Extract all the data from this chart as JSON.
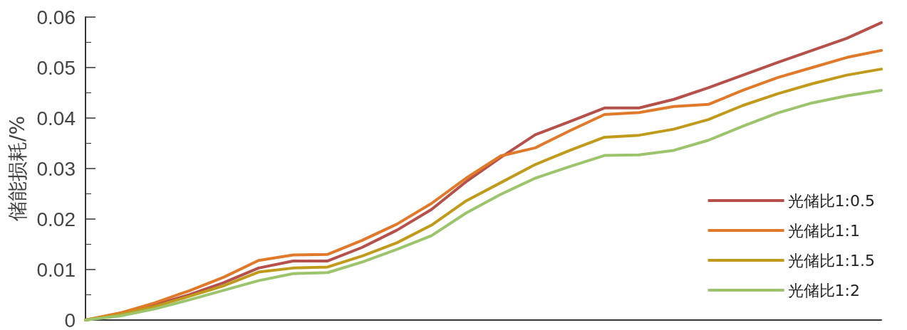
{
  "chart_data": {
    "type": "line",
    "ylabel": "储能损耗/%",
    "categories": [
      null,
      null,
      null,
      null,
      null,
      null,
      null,
      null,
      null,
      null,
      null,
      null,
      null,
      null,
      null,
      null,
      null,
      null,
      null,
      null,
      null,
      null,
      null,
      null
    ],
    "ylim": [
      0,
      0.06
    ],
    "yticks": [
      0,
      0.01,
      0.02,
      0.03,
      0.04,
      0.05,
      0.06
    ],
    "grid": false,
    "legend": "bottom right",
    "marker": "none",
    "line_style": "solid",
    "tick_labels": "y",
    "series": [
      {
        "name": "光储比1:0.5",
        "color": "#b5504a",
        "values": [
          0,
          0.0012,
          0.003,
          0.005,
          0.0074,
          0.0103,
          0.0117,
          0.0117,
          0.0144,
          0.0178,
          0.0219,
          0.0274,
          0.0322,
          0.0367,
          0.0393,
          0.042,
          0.042,
          0.0437,
          0.046,
          0.0485,
          0.051,
          0.0534,
          0.0558,
          0.0589
        ]
      },
      {
        "name": "光储比1:1",
        "color": "#e07a2a",
        "values": [
          0,
          0.0014,
          0.0034,
          0.0058,
          0.0085,
          0.0118,
          0.0129,
          0.013,
          0.0158,
          0.019,
          0.0231,
          0.0281,
          0.0325,
          0.0341,
          0.0375,
          0.0407,
          0.0411,
          0.0423,
          0.0427,
          0.0455,
          0.048,
          0.05,
          0.052,
          0.0534
        ]
      },
      {
        "name": "光储比1:1.5",
        "color": "#c09a1a",
        "values": [
          0,
          0.0011,
          0.0027,
          0.0047,
          0.0068,
          0.0095,
          0.0103,
          0.0105,
          0.0127,
          0.0153,
          0.0188,
          0.0236,
          0.0272,
          0.0308,
          0.0336,
          0.0362,
          0.0366,
          0.0378,
          0.0397,
          0.0425,
          0.0448,
          0.0468,
          0.0485,
          0.0497
        ]
      },
      {
        "name": "光储比1:2",
        "color": "#9cc46c",
        "values": [
          0,
          0.0008,
          0.0022,
          0.004,
          0.0059,
          0.0078,
          0.0092,
          0.0094,
          0.0115,
          0.014,
          0.0167,
          0.0212,
          0.0249,
          0.0281,
          0.0304,
          0.0326,
          0.0327,
          0.0336,
          0.0356,
          0.0384,
          0.041,
          0.043,
          0.0444,
          0.0455
        ]
      }
    ]
  }
}
